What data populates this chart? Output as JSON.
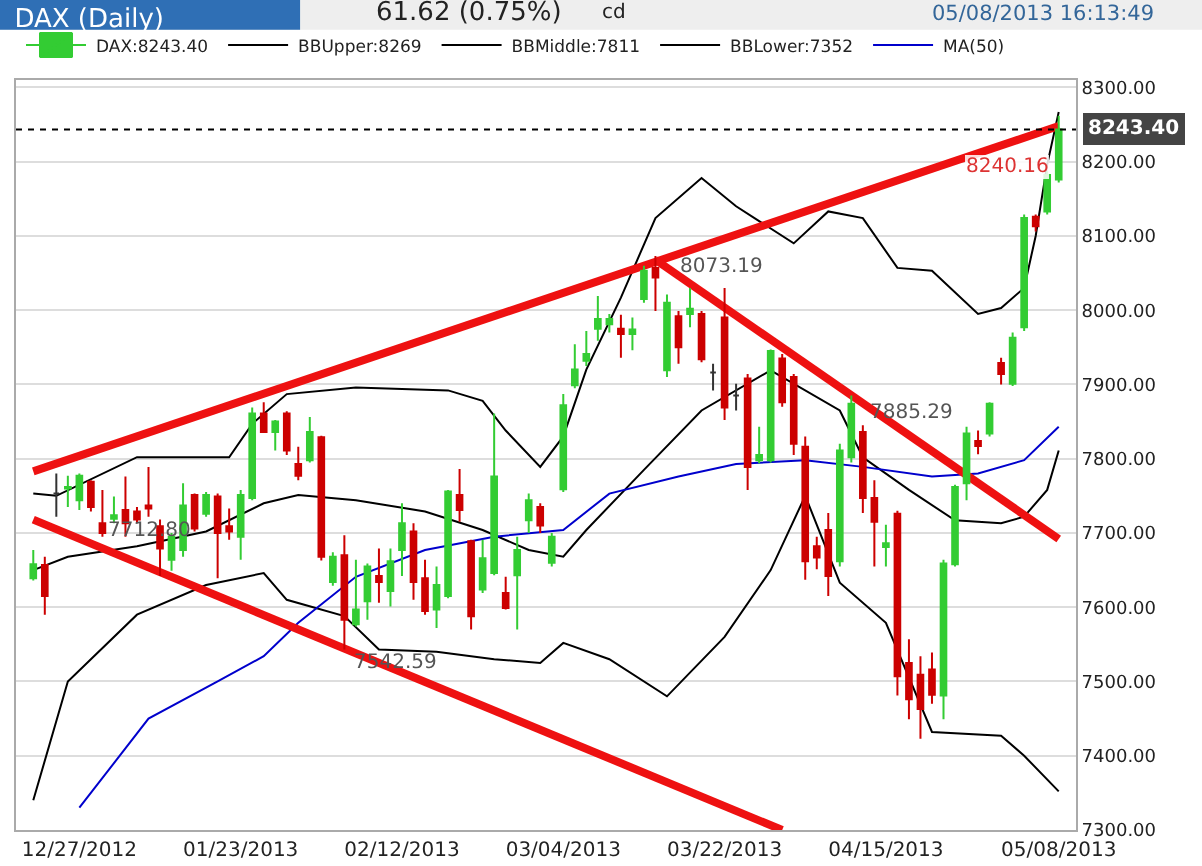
{
  "chart_data": {
    "type": "candlestick",
    "title": "DAX (Daily)",
    "annotations": [
      "61.62 (0.75%)",
      "cd",
      "05/08/2013 16:13:49",
      "8073.19",
      "7885.29",
      "7712.80",
      "7542.59",
      "8240.16"
    ],
    "categories": [
      null,
      null,
      null,
      null,
      "12/27/2012",
      null,
      null,
      null,
      null,
      null,
      null,
      null,
      null,
      null,
      null,
      null,
      null,
      null,
      "01/23/2013",
      null,
      null,
      null,
      null,
      null,
      null,
      null,
      null,
      null,
      null,
      null,
      null,
      null,
      "02/12/2013",
      null,
      null,
      null,
      null,
      null,
      null,
      null,
      null,
      null,
      null,
      null,
      null,
      null,
      "03/04/2013",
      null,
      null,
      null,
      null,
      null,
      null,
      null,
      null,
      null,
      null,
      null,
      null,
      null,
      "03/22/2013",
      null,
      null,
      null,
      null,
      null,
      null,
      null,
      null,
      null,
      null,
      null,
      null,
      null,
      "04/15/2013",
      null,
      null,
      null,
      null,
      null,
      null,
      null,
      null,
      null,
      null,
      null,
      null,
      null,
      null,
      "05/08/2013"
    ],
    "series": [
      {
        "name": "DAX:8243.40",
        "colors": [
          "#33cc33",
          "#cc0000",
          "#333333",
          "#33cc33",
          "#33cc33",
          "#cc0000",
          "#cc0000",
          "#33cc33",
          "#cc0000",
          "#cc0000",
          "#cc0000",
          "#cc0000",
          "#33cc33",
          "#33cc33",
          "#cc0000",
          "#33cc33",
          "#cc0000",
          "#cc0000",
          "#33cc33",
          "#33cc33",
          "#cc0000",
          "#33cc33",
          "#cc0000",
          "#cc0000",
          "#33cc33",
          "#cc0000",
          "#33cc33",
          "#cc0000",
          "#33cc33",
          "#33cc33",
          "#cc0000",
          "#33cc33",
          "#33cc33",
          "#cc0000",
          "#cc0000",
          "#33cc33",
          "#33cc33",
          "#cc0000",
          "#cc0000",
          "#33cc33",
          "#33cc33",
          "#cc0000",
          "#33cc33",
          "#33cc33",
          "#cc0000",
          "#33cc33",
          "#33cc33",
          "#33cc33",
          "#33cc33",
          "#33cc33",
          "#33cc33",
          "#cc0000",
          "#33cc33",
          "#33cc33",
          "#cc0000",
          "#33cc33",
          "#cc0000",
          "#33cc33",
          "#cc0000",
          "#333333",
          "#cc0000",
          "#333333",
          "#cc0000",
          "#33cc33",
          "#33cc33",
          "#cc0000",
          "#cc0000",
          "#cc0000",
          "#cc0000",
          "#cc0000",
          "#33cc33",
          "#33cc33",
          "#cc0000",
          "#cc0000",
          "#33cc33",
          "#cc0000",
          "#cc0000",
          "#cc0000",
          "#cc0000",
          "#33cc33",
          "#33cc33",
          "#33cc33",
          "#cc0000",
          "#33cc33",
          "#cc0000",
          "#33cc33",
          "#33cc33",
          "#cc0000",
          "#33cc33",
          "#33cc33"
        ],
        "ohlc": [
          [
            7639,
            7677,
            7636,
            7658
          ],
          [
            7657,
            7668,
            7590,
            7615
          ],
          [
            7753,
            7780,
            7722,
            7753
          ],
          [
            7760,
            7777,
            7735,
            7762
          ],
          [
            7744,
            7780,
            7731,
            7777
          ],
          [
            7769,
            7771,
            7729,
            7735
          ],
          [
            7713,
            7758,
            7695,
            7700
          ],
          [
            7719,
            7749,
            7713,
            7724
          ],
          [
            7731,
            7776,
            7695,
            7713
          ],
          [
            7729,
            7735,
            7713,
            7718
          ],
          [
            7737,
            7789,
            7722,
            7733
          ],
          [
            7709,
            7718,
            7642,
            7679
          ],
          [
            7664,
            7700,
            7649,
            7695
          ],
          [
            7677,
            7767,
            7668,
            7737
          ],
          [
            7751,
            7753,
            7702,
            7706
          ],
          [
            7726,
            7755,
            7722,
            7751
          ],
          [
            7749,
            7753,
            7639,
            7700
          ],
          [
            7709,
            7733,
            7691,
            7702
          ],
          [
            7695,
            7758,
            7664,
            7751
          ],
          [
            7747,
            7869,
            7744,
            7861
          ],
          [
            7861,
            7876,
            7836,
            7836
          ],
          [
            7836,
            7852,
            7811,
            7850
          ],
          [
            7861,
            7864,
            7805,
            7811
          ],
          [
            7793,
            7816,
            7771,
            7777
          ],
          [
            7798,
            7856,
            7795,
            7836
          ],
          [
            7829,
            7831,
            7663,
            7668
          ],
          [
            7634,
            7674,
            7629,
            7668
          ],
          [
            7670,
            7697,
            7543,
            7583
          ],
          [
            7577,
            7664,
            7574,
            7597
          ],
          [
            7608,
            7659,
            7583,
            7655
          ],
          [
            7642,
            7679,
            7606,
            7634
          ],
          [
            7622,
            7679,
            7601,
            7662
          ],
          [
            7677,
            7740,
            7642,
            7713
          ],
          [
            7702,
            7713,
            7610,
            7634
          ],
          [
            7639,
            7664,
            7590,
            7595
          ],
          [
            7597,
            7655,
            7572,
            7630
          ],
          [
            7615,
            7758,
            7612,
            7756
          ],
          [
            7751,
            7786,
            7715,
            7731
          ],
          [
            7689,
            7691,
            7570,
            7588
          ],
          [
            7624,
            7691,
            7619,
            7666
          ],
          [
            7646,
            7861,
            7643,
            7776
          ],
          [
            7619,
            7641,
            7597,
            7599
          ],
          [
            7643,
            7695,
            7570,
            7677
          ],
          [
            7717,
            7753,
            7700,
            7744
          ],
          [
            7735,
            7740,
            7700,
            7710
          ],
          [
            7660,
            7700,
            7655,
            7695
          ],
          [
            7759,
            7887,
            7755,
            7872
          ],
          [
            7899,
            7954,
            7895,
            7920
          ],
          [
            7932,
            7972,
            7925,
            7941
          ],
          [
            7975,
            8019,
            7959,
            7988
          ],
          [
            7981,
            7995,
            7970,
            7988
          ],
          [
            7975,
            7994,
            7936,
            7968
          ],
          [
            7968,
            7990,
            7946,
            7974
          ],
          [
            8015,
            8060,
            8010,
            8053
          ],
          [
            8057,
            8073,
            7999,
            8044
          ],
          [
            7919,
            8021,
            7910,
            8010
          ],
          [
            7992,
            7999,
            7928,
            7950
          ],
          [
            7995,
            8030,
            7977,
            8002
          ],
          [
            7995,
            7999,
            7930,
            7934
          ],
          [
            7916,
            7928,
            7892,
            7916
          ],
          [
            7990,
            8030,
            7852,
            7869
          ],
          [
            7885,
            7901,
            7865,
            7885
          ],
          [
            7908,
            7914,
            7758,
            7789
          ],
          [
            7798,
            7843,
            7794,
            7805
          ],
          [
            7798,
            7947,
            7795,
            7945
          ],
          [
            7935,
            7941,
            7870,
            7876
          ],
          [
            7910,
            7914,
            7805,
            7820
          ],
          [
            7816,
            7830,
            7637,
            7662
          ],
          [
            7682,
            7695,
            7651,
            7667
          ],
          [
            7704,
            7727,
            7615,
            7642
          ],
          [
            7662,
            7820,
            7655,
            7811
          ],
          [
            7802,
            7885,
            7795,
            7874
          ],
          [
            7836,
            7845,
            7727,
            7747
          ],
          [
            7747,
            7771,
            7655,
            7715
          ],
          [
            7681,
            7711,
            7655,
            7686
          ],
          [
            7726,
            7730,
            7481,
            7507
          ],
          [
            7525,
            7557,
            7449,
            7476
          ],
          [
            7509,
            7534,
            7423,
            7463
          ],
          [
            7516,
            7539,
            7470,
            7482
          ],
          [
            7481,
            7664,
            7449,
            7659
          ],
          [
            7658,
            7765,
            7655,
            7762
          ],
          [
            7767,
            7843,
            7744,
            7834
          ],
          [
            7824,
            7838,
            7806,
            7817
          ],
          [
            7834,
            7876,
            7830,
            7874
          ],
          [
            7929,
            7936,
            7900,
            7914
          ],
          [
            7901,
            7970,
            7898,
            7963
          ],
          [
            7977,
            8129,
            7972,
            8124
          ],
          [
            8126,
            8129,
            8106,
            8113
          ],
          [
            8133,
            8187,
            8129,
            8182
          ],
          [
            8176,
            8262,
            8172,
            8243.4
          ]
        ]
      },
      {
        "type": "line",
        "name": "BBUpper:8269",
        "color": "#000000",
        "values": [
          7753,
          null,
          7750,
          null,
          null,
          null,
          null,
          null,
          null,
          7802,
          null,
          null,
          null,
          null,
          null,
          null,
          null,
          7802,
          null,
          7847,
          null,
          null,
          7887,
          null,
          null,
          null,
          null,
          null,
          7896,
          null,
          null,
          null,
          null,
          null,
          null,
          null,
          7892,
          null,
          null,
          7878,
          null,
          7838,
          null,
          null,
          7789,
          null,
          7830,
          null,
          7920,
          null,
          null,
          8017,
          null,
          null,
          8124,
          null,
          null,
          null,
          8178,
          null,
          null,
          8140,
          null,
          null,
          null,
          null,
          8090,
          null,
          null,
          8133,
          null,
          null,
          8124,
          null,
          null,
          8057,
          null,
          null,
          8053,
          null,
          null,
          null,
          7995,
          null,
          8003,
          null,
          8030,
          8100,
          8196,
          8267
        ]
      },
      {
        "type": "line",
        "name": "BBMiddle:7811",
        "color": "#000000",
        "values": [
          7650,
          null,
          null,
          7668,
          null,
          null,
          null,
          null,
          null,
          7682,
          null,
          null,
          null,
          null,
          null,
          7702,
          null,
          null,
          null,
          null,
          7740,
          null,
          null,
          7751,
          null,
          null,
          null,
          null,
          7744,
          null,
          null,
          null,
          null,
          null,
          7729,
          null,
          null,
          null,
          null,
          7704,
          null,
          null,
          null,
          7677,
          null,
          null,
          7668,
          null,
          7704,
          null,
          null,
          null,
          null,
          7785,
          null,
          null,
          null,
          null,
          7865,
          null,
          null,
          null,
          null,
          null,
          7919,
          null,
          null,
          null,
          null,
          null,
          7865,
          null,
          7802,
          null,
          null,
          null,
          7758,
          null,
          null,
          null,
          7717,
          null,
          null,
          null,
          7713,
          null,
          7722,
          null,
          7758,
          7811
        ]
      },
      {
        "type": "line",
        "name": "BBLower:7352",
        "color": "#000000",
        "values": [
          7340,
          null,
          null,
          7500,
          null,
          null,
          null,
          null,
          null,
          7590,
          null,
          null,
          null,
          null,
          null,
          7630,
          null,
          null,
          null,
          null,
          7646,
          null,
          7610,
          null,
          null,
          null,
          null,
          7588,
          null,
          null,
          7543,
          null,
          null,
          null,
          null,
          7540,
          null,
          null,
          null,
          null,
          7530,
          null,
          null,
          null,
          7525,
          null,
          7552,
          null,
          null,
          null,
          7530,
          null,
          null,
          null,
          null,
          7480,
          null,
          null,
          null,
          null,
          7560,
          null,
          null,
          null,
          7650,
          null,
          null,
          7750,
          null,
          null,
          7633,
          null,
          null,
          null,
          7579,
          null,
          null,
          null,
          7432,
          null,
          null,
          null,
          null,
          null,
          7427,
          null,
          7400,
          null,
          null,
          7352
        ]
      },
      {
        "type": "line",
        "name": "MA(50)",
        "color": "#0000cc",
        "values": [
          null,
          null,
          null,
          null,
          7330,
          null,
          null,
          null,
          null,
          null,
          7450,
          null,
          null,
          null,
          null,
          null,
          7500,
          null,
          null,
          null,
          7534,
          null,
          null,
          7579,
          null,
          null,
          null,
          null,
          7641,
          null,
          null,
          null,
          null,
          null,
          7677,
          null,
          null,
          null,
          null,
          null,
          7695,
          null,
          null,
          null,
          null,
          null,
          7704,
          null,
          null,
          null,
          7753,
          null,
          null,
          null,
          null,
          null,
          7776,
          null,
          null,
          null,
          null,
          7793,
          null,
          null,
          null,
          null,
          null,
          7798,
          null,
          null,
          null,
          null,
          7789,
          null,
          null,
          null,
          null,
          null,
          7776,
          null,
          null,
          null,
          7780,
          null,
          null,
          null,
          7798,
          null,
          null,
          7843
        ]
      },
      {
        "type": "line",
        "color": "#ee1111",
        "values": [
          7783,
          null,
          null,
          null,
          null,
          null,
          null,
          null,
          null,
          null,
          null,
          null,
          null,
          null,
          null,
          null,
          null,
          null,
          null,
          null,
          null,
          null,
          null,
          null,
          null,
          null,
          null,
          null,
          null,
          null,
          null,
          null,
          null,
          null,
          null,
          null,
          null,
          null,
          null,
          null,
          null,
          null,
          null,
          null,
          null,
          null,
          null,
          null,
          null,
          null,
          null,
          null,
          null,
          null,
          null,
          null,
          null,
          null,
          null,
          null,
          null,
          null,
          null,
          null,
          null,
          null,
          null,
          null,
          null,
          null,
          null,
          null,
          null,
          null,
          null,
          null,
          null,
          null,
          null,
          null,
          null,
          null,
          null,
          null,
          null,
          null,
          null,
          null,
          null,
          8248
        ]
      },
      {
        "type": "line",
        "color": "#ee1111",
        "values": [
          7718,
          null,
          null,
          null,
          null,
          null,
          null,
          null,
          null,
          null,
          null,
          null,
          null,
          null,
          null,
          null,
          null,
          null,
          null,
          null,
          null,
          null,
          null,
          null,
          null,
          null,
          null,
          null,
          null,
          null,
          null,
          null,
          null,
          null,
          null,
          null,
          null,
          null,
          null,
          null,
          null,
          null,
          null,
          null,
          null,
          null,
          null,
          null,
          null,
          null,
          null,
          null,
          null,
          null,
          null,
          null,
          null,
          null,
          null,
          null,
          null,
          null,
          null,
          null,
          null,
          7300,
          null,
          null,
          null,
          null,
          null,
          null,
          null,
          null,
          null,
          null,
          null,
          null,
          null,
          null,
          null,
          null,
          null,
          null,
          null,
          null,
          null,
          null,
          null,
          null
        ]
      },
      {
        "type": "line",
        "color": "#ee1111",
        "values": [
          null,
          null,
          null,
          null,
          null,
          null,
          null,
          null,
          null,
          null,
          null,
          null,
          null,
          null,
          null,
          null,
          null,
          null,
          null,
          null,
          null,
          null,
          null,
          null,
          null,
          null,
          null,
          null,
          null,
          null,
          null,
          null,
          null,
          null,
          null,
          null,
          null,
          null,
          null,
          null,
          null,
          null,
          null,
          null,
          null,
          null,
          null,
          null,
          null,
          null,
          null,
          null,
          null,
          null,
          8068,
          null,
          null,
          null,
          null,
          null,
          null,
          null,
          null,
          null,
          null,
          null,
          null,
          null,
          null,
          null,
          null,
          null,
          null,
          null,
          null,
          null,
          null,
          null,
          null,
          null,
          null,
          null,
          null,
          null,
          null,
          null,
          null,
          null,
          null,
          7692
        ]
      }
    ],
    "ylim": [
      7300,
      8310
    ],
    "yticks": [
      {
        "value": 7300,
        "label": "7300.00"
      },
      {
        "value": 7400,
        "label": "7400.00"
      },
      {
        "value": 7500,
        "label": "7500.00"
      },
      {
        "value": 7600,
        "label": "7600.00"
      },
      {
        "value": 7700,
        "label": "7700.00"
      },
      {
        "value": 7800,
        "label": "7800.00"
      },
      {
        "value": 7900,
        "label": "7900.00"
      },
      {
        "value": 8000,
        "label": "8000.00"
      },
      {
        "value": 8100,
        "label": "8100.00"
      },
      {
        "value": 8200,
        "label": "8200.00"
      },
      {
        "value": 8300,
        "label": "8300.00"
      }
    ],
    "grid": "y",
    "legend": "top",
    "ref_lines": [
      {
        "axis": "y",
        "value": 8243.4,
        "label": "8243.40",
        "color": "#000000",
        "line_style": "dotted"
      }
    ]
  }
}
